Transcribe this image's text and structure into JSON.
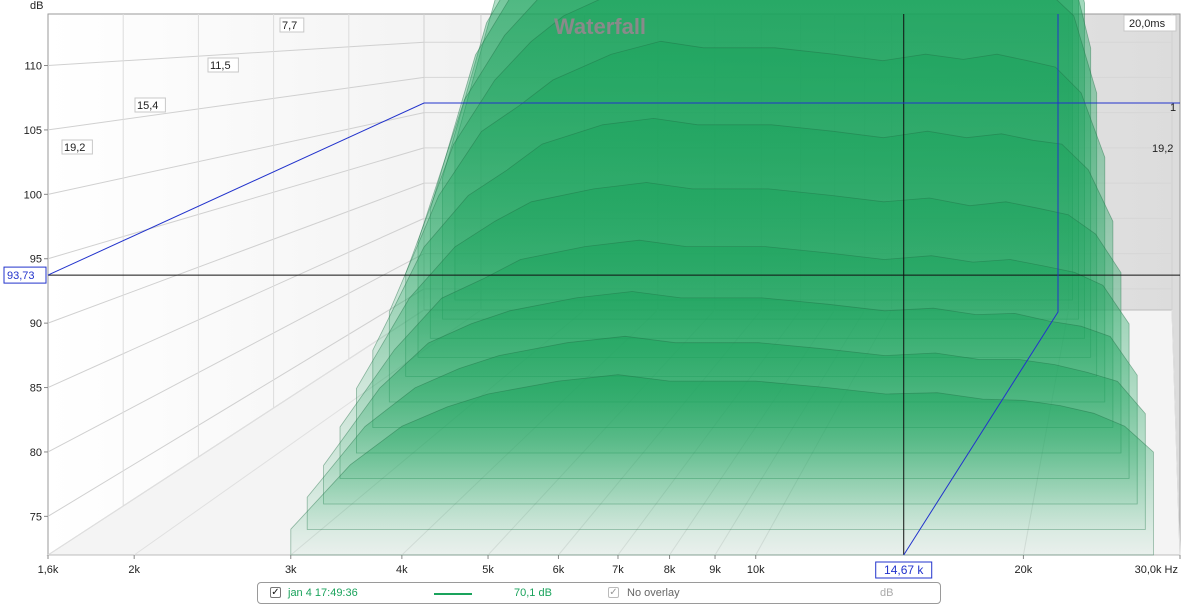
{
  "chart_data": {
    "type": "area",
    "title": "Waterfall",
    "subtype": "3d-waterfall",
    "ylabel": "dB",
    "xlabel_unit": "Hz",
    "x_scale": "log",
    "xlim": [
      1600,
      30000
    ],
    "ylim": [
      72,
      114
    ],
    "x_ticks": [
      {
        "v": 1600,
        "label": "1,6k"
      },
      {
        "v": 2000,
        "label": "2k"
      },
      {
        "v": 3000,
        "label": "3k"
      },
      {
        "v": 4000,
        "label": "4k"
      },
      {
        "v": 5000,
        "label": "5k"
      },
      {
        "v": 6000,
        "label": "6k"
      },
      {
        "v": 7000,
        "label": "7k"
      },
      {
        "v": 8000,
        "label": "8k"
      },
      {
        "v": 9000,
        "label": "9k"
      },
      {
        "v": 10000,
        "label": "10k"
      },
      {
        "v": 20000,
        "label": "20k"
      },
      {
        "v": 30000,
        "label": "30,0k Hz"
      }
    ],
    "y_ticks": [
      75,
      80,
      85,
      90,
      95,
      100,
      105,
      110
    ],
    "time_ticks_ms": [
      {
        "label": "7,7"
      },
      {
        "label": "11,5"
      },
      {
        "label": "15,4"
      },
      {
        "label": "19,2"
      }
    ],
    "time_range_label": "20,0ms",
    "right_time_labels": [
      "1",
      "19,2"
    ],
    "cursor": {
      "y_label": "93,73",
      "x_label": "14,67 k",
      "y_value": 93.73,
      "x_value": 14670
    },
    "grid": true,
    "color": "#1aa35c",
    "series": [
      {
        "name": "jan 4 17:49:36",
        "slices": [
          {
            "t": 0,
            "x": [
              3000,
              3500,
              4000,
              4500,
              5000,
              6000,
              7000,
              8000,
              10000,
              12000,
              14000,
              16000,
              18000,
              20000,
              22000,
              24000,
              26000,
              28000
            ],
            "y": [
              84,
              96,
              101,
              105,
              108,
              110,
              111,
              111,
              111,
              110.5,
              110,
              110.5,
              110.3,
              110.8,
              110.5,
              110.2,
              108,
              100
            ]
          },
          {
            "t": 1.5,
            "x": [
              3000,
              3500,
              4000,
              4500,
              5000,
              6000,
              7000,
              8000,
              10000,
              12000,
              14000,
              16000,
              18000,
              20000,
              22000,
              24000,
              26000,
              28000
            ],
            "y": [
              83,
              95,
              100,
              104,
              107,
              109,
              110,
              110,
              110,
              109.5,
              109,
              109.5,
              109.2,
              109.6,
              109.3,
              109,
              107,
              99
            ]
          },
          {
            "t": 3,
            "x": [
              3000,
              3500,
              4000,
              4500,
              5000,
              6000,
              7000,
              8000,
              10000,
              12000,
              14000,
              16000,
              18000,
              20000,
              22000,
              24000,
              26000,
              28000
            ],
            "y": [
              82,
              94,
              99,
              102,
              105,
              107,
              108,
              108,
              108,
              107.5,
              107,
              107.5,
              107.3,
              107.6,
              107.2,
              107,
              105,
              98
            ]
          },
          {
            "t": 4.5,
            "x": [
              3000,
              3500,
              4000,
              4500,
              5000,
              6000,
              7000,
              8000,
              10000,
              12000,
              14000,
              16000,
              18000,
              20000,
              22000,
              24000,
              26000,
              28000
            ],
            "y": [
              81,
              92,
              97,
              100,
              103,
              105,
              106,
              106,
              106,
              105.5,
              105,
              105.4,
              105.1,
              105.5,
              105,
              104.8,
              103,
              96
            ]
          },
          {
            "t": 6,
            "x": [
              3000,
              3500,
              4000,
              4500,
              5000,
              6000,
              7000,
              8000,
              10000,
              12000,
              14000,
              16000,
              18000,
              20000,
              22000,
              24000,
              26000,
              28000
            ],
            "y": [
              80,
              90,
              95,
              98,
              100,
              102,
              103,
              103,
              103,
              102.5,
              102,
              102.5,
              102,
              102.4,
              102,
              101.8,
              100,
              94
            ]
          },
          {
            "t": 8,
            "x": [
              3000,
              3500,
              4000,
              4500,
              5000,
              6000,
              7000,
              8000,
              10000,
              12000,
              14000,
              16000,
              18000,
              20000,
              22000,
              24000,
              26000,
              28000
            ],
            "y": [
              79,
              88,
              93,
              95,
              97,
              99,
              100,
              99.5,
              99.5,
              99,
              98.5,
              99,
              98.6,
              99,
              98.5,
              98,
              96,
              91
            ]
          },
          {
            "t": 10,
            "x": [
              3000,
              3500,
              4000,
              4500,
              5000,
              6000,
              7000,
              8000,
              10000,
              12000,
              14000,
              16000,
              18000,
              20000,
              22000,
              24000,
              26000,
              28000
            ],
            "y": [
              78,
              86,
              90,
              92,
              94,
              95.5,
              96,
              95.5,
              95.5,
              95,
              94.5,
              95,
              94.5,
              94.8,
              94.3,
              94,
              92,
              88
            ]
          },
          {
            "t": 12,
            "x": [
              3000,
              3500,
              4000,
              4500,
              5000,
              6000,
              7000,
              8000,
              10000,
              12000,
              14000,
              16000,
              18000,
              20000,
              22000,
              24000,
              26000,
              28000
            ],
            "y": [
              77,
              84,
              88,
              90,
              91.5,
              92.5,
              93,
              92.5,
              92.5,
              92,
              91.5,
              91.8,
              91.2,
              91.5,
              91,
              90.5,
              89,
              86
            ]
          },
          {
            "t": 14,
            "x": [
              3000,
              3500,
              4000,
              4500,
              5000,
              6000,
              7000,
              8000,
              10000,
              12000,
              14000,
              16000,
              18000,
              20000,
              22000,
              24000,
              26000,
              28000
            ],
            "y": [
              76,
              82,
              86,
              87.5,
              89,
              90,
              90.5,
              90,
              90,
              89.5,
              89,
              89.3,
              88.8,
              89,
              88.5,
              88,
              87,
              84
            ]
          },
          {
            "t": 16,
            "x": [
              3000,
              3500,
              4000,
              4500,
              5000,
              6000,
              7000,
              8000,
              10000,
              12000,
              14000,
              16000,
              18000,
              20000,
              22000,
              24000,
              26000,
              28000
            ],
            "y": [
              75,
              81,
              84.5,
              86,
              87,
              88,
              88.5,
              88,
              88,
              87.5,
              87,
              87.2,
              86.7,
              86.8,
              86.2,
              85.8,
              85,
              82
            ]
          },
          {
            "t": 18,
            "x": [
              3000,
              3500,
              4000,
              4500,
              5000,
              6000,
              7000,
              8000,
              10000,
              12000,
              14000,
              16000,
              18000,
              20000,
              22000,
              24000,
              26000,
              28000
            ],
            "y": [
              74.5,
              80,
              83,
              84.5,
              85.5,
              86.5,
              87,
              86.5,
              86.5,
              86,
              85.5,
              85.7,
              85.2,
              85.2,
              84.8,
              84.2,
              83.5,
              81
            ]
          },
          {
            "t": 20,
            "x": [
              3000,
              3500,
              4000,
              4500,
              5000,
              6000,
              7000,
              8000,
              10000,
              12000,
              14000,
              16000,
              18000,
              20000,
              22000,
              24000,
              26000,
              28000
            ],
            "y": [
              74,
              79,
              82,
              83.5,
              84.5,
              85.5,
              86,
              85.5,
              85.5,
              85,
              84.5,
              84.6,
              84.1,
              84,
              83.6,
              83,
              82,
              80
            ]
          }
        ]
      }
    ]
  },
  "legend": {
    "checkbox_mark": "✓",
    "series_label": "jan 4 17:49:36",
    "series_color": "#1aa35c",
    "value": "70,1 dB",
    "overlay_label": "No overlay",
    "overlay_unit": "dB"
  }
}
